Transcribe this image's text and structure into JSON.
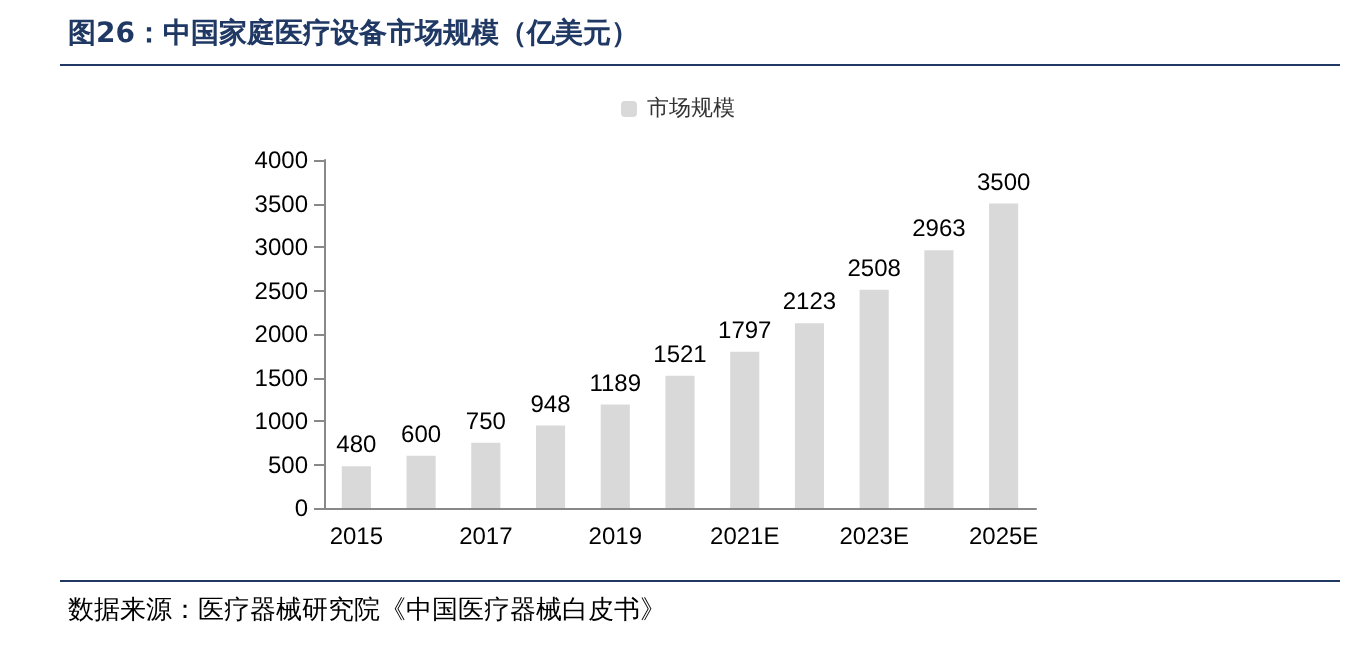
{
  "chart_data": {
    "type": "bar",
    "title": "图26：中国家庭医疗设备市场规模（亿美元）",
    "categories": [
      "2015",
      null,
      "2017",
      null,
      "2019",
      null,
      "2021E",
      null,
      "2023E",
      null,
      "2025E"
    ],
    "series": [
      {
        "name": "市场规模",
        "color": "#d9d9d9",
        "values": [
          480,
          600,
          750,
          948,
          1189,
          1521,
          1797,
          2123,
          2508,
          2963,
          3500
        ]
      }
    ],
    "ylim": [
      0,
      4000
    ],
    "yticks": [
      0,
      500,
      1000,
      1500,
      2000,
      2500,
      3000,
      3500,
      4000
    ],
    "grid": false,
    "legend": "top",
    "data_labels": true,
    "annotations": [
      "数据来源：医疗器械研究院《中国医疗器械白皮书》"
    ]
  }
}
